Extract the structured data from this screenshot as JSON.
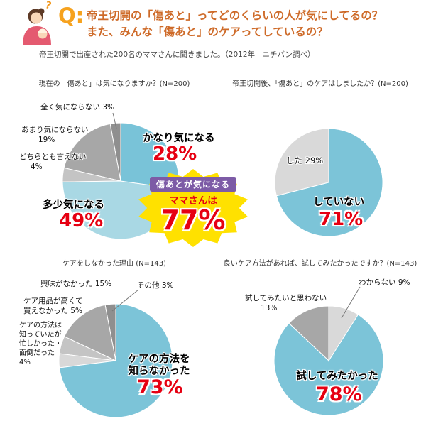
{
  "header": {
    "q": "Q:",
    "question_mark": "?",
    "title_line1": "帝王切開の「傷あと」ってどのくらいの人が気にしてるの？",
    "title_line2": "また、みんな「傷あと」のケアってしているの？",
    "subtitle": "帝王切開で出産された200名のママさんに聞きました。（2012年　ニチバン調べ）"
  },
  "burst": {
    "line1": "傷あとが気になる",
    "line2": "ママさんは",
    "value": 77
  },
  "colors": {
    "accent_orange": "#F6A21E",
    "title_orange": "#CE6A28",
    "percent_red": "#E60012",
    "teal": "#7CC4D8",
    "teal_light": "#A9D8E4",
    "gray_dark": "#8F8F8F",
    "gray_mid": "#A7A7A7",
    "gray_light": "#C4C4C4",
    "gray_pale": "#D9D9D9",
    "burst_yellow": "#FFE100",
    "burst_purple": "#7D5BA6"
  },
  "chart_data": [
    {
      "type": "pie",
      "title": "現在の「傷あと」は気になりますか？(N=200)",
      "slices": [
        {
          "label": "かなり気になる",
          "value": 28,
          "color": "#79C3D8"
        },
        {
          "label": "多少気になる",
          "value": 49,
          "color": "#A9D8E4"
        },
        {
          "label": "どちらとも言えない",
          "value": 4,
          "color": "#C4C4C4"
        },
        {
          "label": "あまり気にならない",
          "value": 19,
          "color": "#A7A7A7"
        },
        {
          "label": "全く気にならない",
          "value": 3,
          "color": "#8F8F8F"
        }
      ]
    },
    {
      "type": "pie",
      "title": "帝王切開後、「傷あと」のケアはしましたか？(N=200)",
      "slices": [
        {
          "label": "していない",
          "value": 71,
          "color": "#7CC4D8"
        },
        {
          "label": "した",
          "value": 29,
          "color": "#D9D9D9"
        }
      ]
    },
    {
      "type": "pie",
      "title": "ケアをしなかった理由 (N=143)",
      "slices": [
        {
          "label": "ケアの方法を知らなかった",
          "value": 73,
          "color": "#7CC4D8"
        },
        {
          "label": "ケアの方法は知っていたが忙しかった・面倒だった",
          "value": 4,
          "color": "#D8D8D8"
        },
        {
          "label": "ケア用品が高くて買えなかった",
          "value": 5,
          "color": "#C4C4C4"
        },
        {
          "label": "興味がなかった",
          "value": 15,
          "color": "#A7A7A7"
        },
        {
          "label": "その他",
          "value": 3,
          "color": "#8F8F8F"
        }
      ]
    },
    {
      "type": "pie",
      "title": "良いケア方法があれば、試してみたかったですか？(N=143)",
      "slices": [
        {
          "label": "わからない",
          "value": 9,
          "color": "#D9D9D9"
        },
        {
          "label": "試してみたかった",
          "value": 78,
          "color": "#7CC4D8"
        },
        {
          "label": "試してみたいと思わない",
          "value": 13,
          "color": "#A7A7A7"
        }
      ]
    }
  ]
}
